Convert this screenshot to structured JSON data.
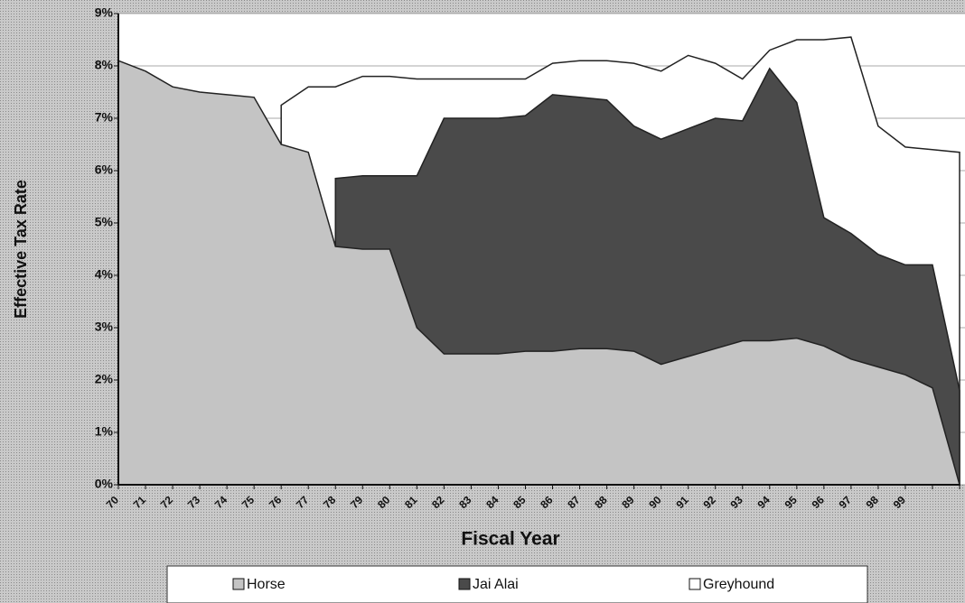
{
  "chart_data": {
    "type": "area",
    "x_label": "Fiscal Year",
    "y_label": "Effective Tax Rate",
    "categories": [
      "70",
      "71",
      "72",
      "73",
      "74",
      "75",
      "76",
      "77",
      "78",
      "79",
      "80",
      "81",
      "82",
      "83",
      "84",
      "85",
      "86",
      "87",
      "88",
      "89",
      "90",
      "91",
      "92",
      "93",
      "94",
      "95",
      "96",
      "97",
      "98",
      "99",
      null,
      null
    ],
    "series": [
      {
        "name": "Greyhound",
        "color": "#ffffff",
        "values": [
          null,
          null,
          null,
          null,
          null,
          null,
          7.25,
          7.6,
          7.6,
          7.8,
          7.8,
          7.75,
          7.75,
          7.75,
          7.75,
          7.75,
          8.05,
          8.1,
          8.1,
          8.05,
          7.9,
          8.2,
          8.05,
          7.75,
          8.3,
          8.5,
          8.5,
          8.55,
          6.85,
          6.45,
          6.4,
          6.35
        ]
      },
      {
        "name": "Jai Alai",
        "color": "#4a4a4a",
        "values": [
          null,
          null,
          null,
          null,
          null,
          null,
          null,
          null,
          5.85,
          5.9,
          5.9,
          5.9,
          7.0,
          7.0,
          7.0,
          7.05,
          7.45,
          7.4,
          7.35,
          6.85,
          6.6,
          6.8,
          7.0,
          6.95,
          7.95,
          7.3,
          5.1,
          4.8,
          4.4,
          4.2,
          4.2,
          1.8
        ]
      },
      {
        "name": "Horse",
        "color": "#c4c4c4",
        "values": [
          8.1,
          7.9,
          7.6,
          7.5,
          7.45,
          7.4,
          6.5,
          6.35,
          4.55,
          4.5,
          4.5,
          3.0,
          2.5,
          2.5,
          2.5,
          2.55,
          2.55,
          2.6,
          2.6,
          2.55,
          2.3,
          2.45,
          2.6,
          2.75,
          2.75,
          2.8,
          2.65,
          2.4,
          2.25,
          2.1,
          1.85,
          0
        ]
      }
    ],
    "ylim": [
      0,
      9
    ],
    "yticks": [
      {
        "value": 0,
        "label": "0%"
      },
      {
        "value": 1,
        "label": "1%"
      },
      {
        "value": 2,
        "label": "2%"
      },
      {
        "value": 3,
        "label": "3%"
      },
      {
        "value": 4,
        "label": "4%"
      },
      {
        "value": 5,
        "label": "5%"
      },
      {
        "value": 6,
        "label": "6%"
      },
      {
        "value": 7,
        "label": "7%"
      },
      {
        "value": 8,
        "label": "8%"
      },
      {
        "value": 9,
        "label": "9%"
      }
    ],
    "grid": true
  }
}
